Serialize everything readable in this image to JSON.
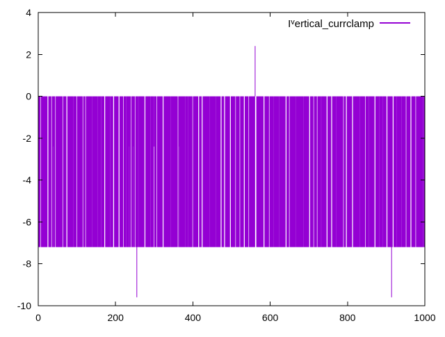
{
  "colors": {
    "series": "#9400d3",
    "axis": "#000000",
    "background": "#ffffff"
  },
  "chart_data": {
    "type": "impulses",
    "title": "",
    "xlabel": "",
    "ylabel": "",
    "xlim": [
      0,
      1000
    ],
    "ylim": [
      -10,
      4
    ],
    "x_ticks": [
      0,
      200,
      400,
      600,
      800,
      1000
    ],
    "y_ticks": [
      4,
      2,
      0,
      -2,
      -4,
      -6,
      -8,
      -10
    ],
    "grid": "off",
    "border": "on",
    "legend_position": "top-right",
    "legend": {
      "label_prefix": "I",
      "label_superscript": "v",
      "label_rest": "ertical_currclamp",
      "full_label": "I^vertical_currclamp"
    },
    "series_color": "#9400d3",
    "x_points": 1001,
    "levels": {
      "baseline": -7.2,
      "gap_value": 0,
      "minor_dip": -2.4
    },
    "pattern": {
      "seed": 42,
      "gap_len_min": 1,
      "gap_len_max": 3,
      "gap_spacing_min": 5,
      "gap_spacing_max": 18
    },
    "minor_dips_x": [
      38,
      234,
      246,
      300,
      365
    ],
    "anomalies": [
      {
        "x": 255,
        "y": -9.6
      },
      {
        "x": 561,
        "y": 2.4
      },
      {
        "x": 914,
        "y": -9.6
      }
    ]
  }
}
